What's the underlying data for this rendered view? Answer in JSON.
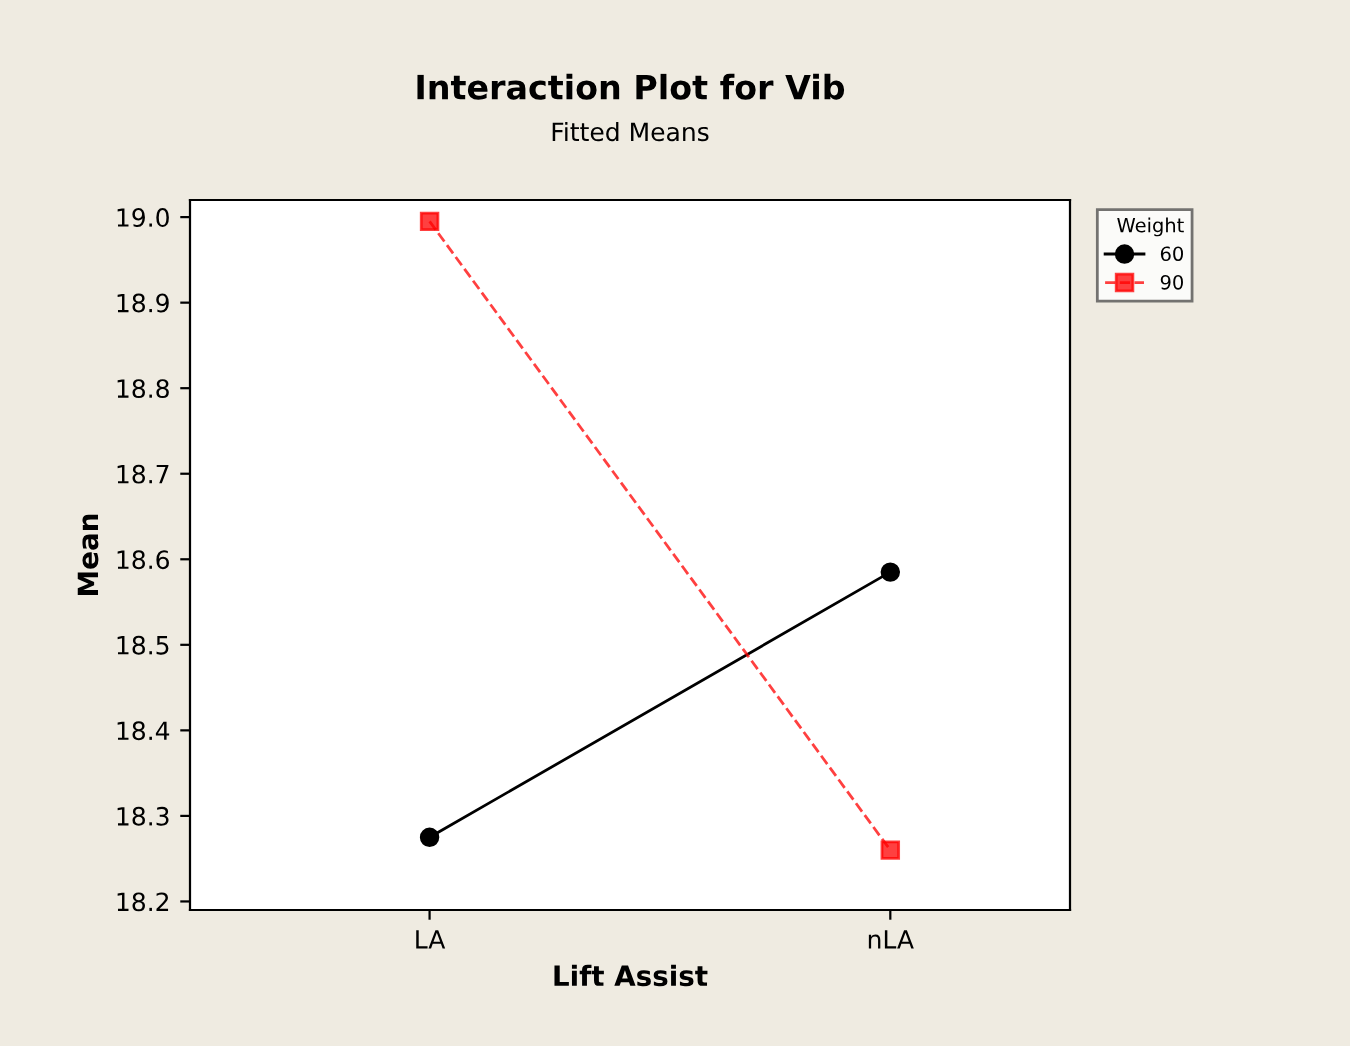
{
  "chart_data": {
    "type": "line",
    "title": "Interaction Plot for Vib",
    "subtitle": "Fitted Means",
    "xlabel": "Lift Assist",
    "ylabel": "Mean",
    "legend_title": "Weight",
    "categories": [
      "LA",
      "nLA"
    ],
    "series": [
      {
        "name": "60",
        "color": "#000000",
        "values": [
          18.275,
          18.585
        ],
        "marker": "circle",
        "line_style": "solid"
      },
      {
        "name": "90",
        "color": "#ff0000",
        "values": [
          18.995,
          18.26
        ],
        "marker": "square",
        "line_style": "dashed"
      }
    ],
    "ylim": [
      18.19,
      19.02
    ],
    "yticks": [
      {
        "value": 18.2,
        "label": "18.2"
      },
      {
        "value": 18.3,
        "label": "18.3"
      },
      {
        "value": 18.4,
        "label": "18.4"
      },
      {
        "value": 18.5,
        "label": "18.5"
      },
      {
        "value": 18.6,
        "label": "18.6"
      },
      {
        "value": 18.7,
        "label": "18.7"
      },
      {
        "value": 18.8,
        "label": "18.8"
      },
      {
        "value": 18.9,
        "label": "18.9"
      },
      {
        "value": 19.0,
        "label": "19.0"
      }
    ],
    "grid": false,
    "legend": "top right"
  }
}
